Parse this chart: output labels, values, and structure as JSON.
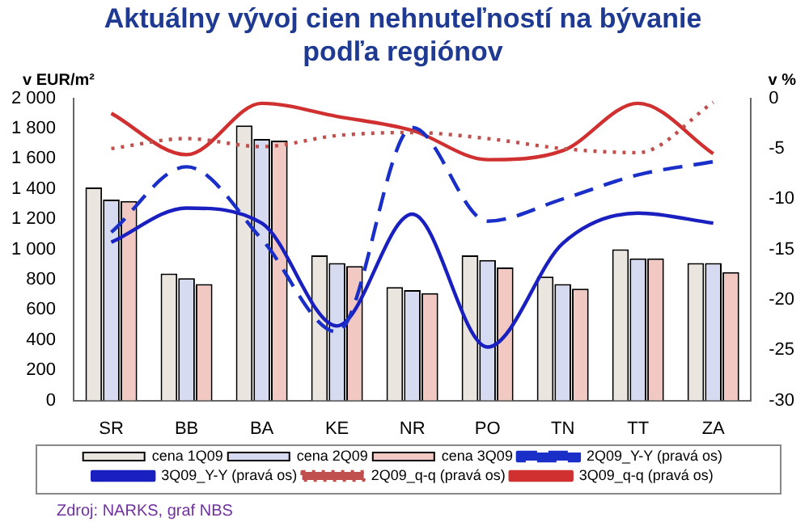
{
  "chart_data": {
    "type": "bar",
    "title": "Aktuálny vývoj cien nehnuteľností na bývanie\npodľa regiónov",
    "ylabel": "v EUR/m²",
    "y2label": "v %",
    "categories": [
      "SR",
      "BB",
      "BA",
      "KE",
      "NR",
      "PO",
      "TN",
      "TT",
      "ZA"
    ],
    "series": [
      {
        "name": "cena 1Q09",
        "color": "#ebe5df",
        "values": [
          1410,
          840,
          1820,
          960,
          750,
          960,
          820,
          1000,
          910
        ]
      },
      {
        "name": "cena 2Q09",
        "color": "#d6dbf2",
        "values": [
          1330,
          810,
          1730,
          910,
          730,
          930,
          770,
          940,
          910
        ]
      },
      {
        "name": "cena 3Q09",
        "color": "#f2c9c2",
        "values": [
          1320,
          770,
          1720,
          890,
          710,
          880,
          740,
          940,
          850
        ]
      },
      {
        "name": "2Q09_Y-Y (pravá os)",
        "type": "line",
        "axis": "y2",
        "color": "#1a2fc8",
        "line_style": "dashed",
        "values": [
          -13.3,
          -6.8,
          -14,
          -23.2,
          -2.9,
          -12.2,
          -10,
          -7.6,
          -6.3
        ]
      },
      {
        "name": "3Q09_Y-Y (pravá os)",
        "type": "line",
        "axis": "y2",
        "color": "#1a1fc0",
        "line_style": "solid",
        "values": [
          -14.3,
          -10.9,
          -12.4,
          -22.6,
          -11.5,
          -24.7,
          -14.4,
          -11.4,
          -12.4
        ]
      },
      {
        "name": "2Q09_q-q (pravá os)",
        "type": "line",
        "axis": "y2",
        "color": "#c0504d",
        "line_style": "dotted",
        "values": [
          -5,
          -4,
          -4.8,
          -3.7,
          -3.4,
          -4,
          -5,
          -5.4,
          -0.4
        ]
      },
      {
        "name": "3Q09_q-q (pravá os)",
        "type": "line",
        "axis": "y2",
        "color": "#d03030",
        "line_style": "solid",
        "values": [
          -1.5,
          -5.6,
          -0.5,
          -1.8,
          -3.2,
          -6.1,
          -5.2,
          -0.5,
          -5.5
        ]
      }
    ],
    "ylim": [
      0,
      2000
    ],
    "yticks": [
      0,
      {
        "value": 200,
        "label": "200"
      },
      {
        "value": 400,
        "label": "400"
      },
      {
        "value": 600,
        "label": "600"
      },
      {
        "value": 800,
        "label": "800"
      },
      {
        "value": 1000,
        "label": "1 000"
      },
      {
        "value": 1200,
        "label": "1 200"
      },
      {
        "value": 1400,
        "label": "1 400"
      },
      {
        "value": 1600,
        "label": "1 600"
      },
      {
        "value": 1800,
        "label": "1 800"
      },
      {
        "value": 2000,
        "label": "2 000"
      }
    ],
    "y2lim": [
      -30,
      0
    ],
    "y2ticks": [
      -30,
      -25,
      -20,
      -15,
      -10,
      -5,
      0
    ],
    "grid": false,
    "legend": "bottom",
    "marker": "none",
    "annotations": [
      "Zdroj: NARKS, graf NBS"
    ]
  }
}
